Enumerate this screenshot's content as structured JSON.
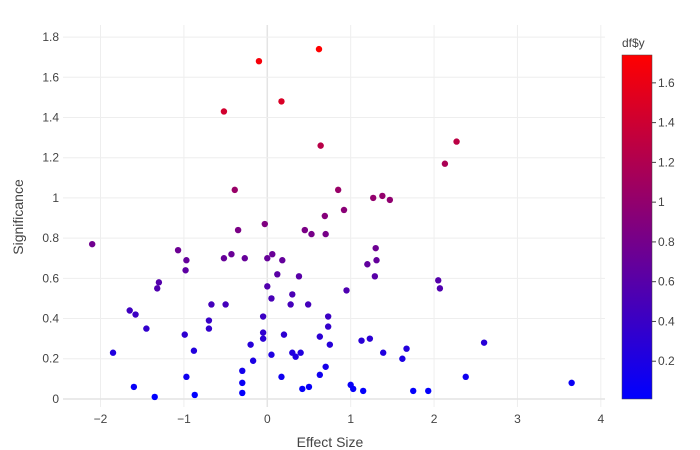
{
  "chart_data": {
    "type": "scatter",
    "title": "",
    "xlabel": "Effect Size",
    "ylabel": "Significance",
    "xlim": [
      -2.45,
      4.05
    ],
    "ylim": [
      -0.04,
      1.86
    ],
    "x_ticks": [
      -2,
      -1,
      0,
      1,
      2,
      3,
      4
    ],
    "x_tick_labels": [
      "−2",
      "−1",
      "0",
      "1",
      "2",
      "3",
      "4"
    ],
    "y_ticks": [
      0,
      0.2,
      0.4,
      0.6,
      0.8,
      1.0,
      1.2,
      1.4,
      1.6,
      1.8
    ],
    "y_tick_labels": [
      "0",
      "0.2",
      "0.4",
      "0.6",
      "0.8",
      "1",
      "1.2",
      "1.4",
      "1.6",
      "1.8"
    ],
    "grid": true,
    "colorbar": {
      "title": "df$y",
      "range": [
        0.01,
        1.74
      ],
      "ticks": [
        0.2,
        0.4,
        0.6,
        0.8,
        1.0,
        1.2,
        1.4,
        1.6
      ],
      "tick_labels": [
        "0.2",
        "0.4",
        "0.6",
        "0.8",
        "1",
        "1.2",
        "1.4",
        "1.6"
      ],
      "colors": [
        "#0000ff",
        "#ff0000"
      ]
    },
    "points": [
      {
        "x": -2.1,
        "y": 0.77
      },
      {
        "x": -1.85,
        "y": 0.23
      },
      {
        "x": -1.65,
        "y": 0.44
      },
      {
        "x": -1.58,
        "y": 0.42
      },
      {
        "x": -1.6,
        "y": 0.06
      },
      {
        "x": -1.45,
        "y": 0.35
      },
      {
        "x": -1.3,
        "y": 0.58
      },
      {
        "x": -1.32,
        "y": 0.55
      },
      {
        "x": -1.35,
        "y": 0.01
      },
      {
        "x": -1.07,
        "y": 0.74
      },
      {
        "x": -0.97,
        "y": 0.69
      },
      {
        "x": -0.98,
        "y": 0.64
      },
      {
        "x": -0.99,
        "y": 0.32
      },
      {
        "x": -0.97,
        "y": 0.11
      },
      {
        "x": -0.88,
        "y": 0.24
      },
      {
        "x": -0.87,
        "y": 0.02
      },
      {
        "x": -0.7,
        "y": 0.39
      },
      {
        "x": -0.7,
        "y": 0.35
      },
      {
        "x": -0.67,
        "y": 0.47
      },
      {
        "x": -0.52,
        "y": 1.43
      },
      {
        "x": -0.5,
        "y": 0.47
      },
      {
        "x": -0.52,
        "y": 0.7
      },
      {
        "x": -0.43,
        "y": 0.72
      },
      {
        "x": -0.39,
        "y": 1.04
      },
      {
        "x": -0.35,
        "y": 0.84
      },
      {
        "x": -0.27,
        "y": 0.7
      },
      {
        "x": -0.3,
        "y": 0.14
      },
      {
        "x": -0.3,
        "y": 0.08
      },
      {
        "x": -0.3,
        "y": 0.03
      },
      {
        "x": -0.2,
        "y": 0.27
      },
      {
        "x": -0.17,
        "y": 0.19
      },
      {
        "x": -0.1,
        "y": 1.68
      },
      {
        "x": -0.05,
        "y": 0.41
      },
      {
        "x": -0.05,
        "y": 0.33
      },
      {
        "x": -0.05,
        "y": 0.3
      },
      {
        "x": -0.03,
        "y": 0.87
      },
      {
        "x": 0.0,
        "y": 0.7
      },
      {
        "x": 0.0,
        "y": 0.56
      },
      {
        "x": 0.05,
        "y": 0.5
      },
      {
        "x": 0.06,
        "y": 0.72
      },
      {
        "x": 0.05,
        "y": 0.22
      },
      {
        "x": 0.12,
        "y": 0.62
      },
      {
        "x": 0.17,
        "y": 1.48
      },
      {
        "x": 0.18,
        "y": 0.69
      },
      {
        "x": 0.17,
        "y": 0.11
      },
      {
        "x": 0.2,
        "y": 0.32
      },
      {
        "x": 0.28,
        "y": 0.47
      },
      {
        "x": 0.3,
        "y": 0.52
      },
      {
        "x": 0.3,
        "y": 0.23
      },
      {
        "x": 0.34,
        "y": 0.21
      },
      {
        "x": 0.38,
        "y": 0.61
      },
      {
        "x": 0.4,
        "y": 0.23
      },
      {
        "x": 0.42,
        "y": 0.05
      },
      {
        "x": 0.45,
        "y": 0.84
      },
      {
        "x": 0.49,
        "y": 0.47
      },
      {
        "x": 0.5,
        "y": 0.06
      },
      {
        "x": 0.53,
        "y": 0.82
      },
      {
        "x": 0.62,
        "y": 1.74
      },
      {
        "x": 0.64,
        "y": 1.26
      },
      {
        "x": 0.63,
        "y": 0.31
      },
      {
        "x": 0.63,
        "y": 0.12
      },
      {
        "x": 0.69,
        "y": 0.91
      },
      {
        "x": 0.7,
        "y": 0.82
      },
      {
        "x": 0.7,
        "y": 0.16
      },
      {
        "x": 0.73,
        "y": 0.41
      },
      {
        "x": 0.73,
        "y": 0.36
      },
      {
        "x": 0.75,
        "y": 0.27
      },
      {
        "x": 0.85,
        "y": 1.04
      },
      {
        "x": 0.92,
        "y": 0.94
      },
      {
        "x": 0.95,
        "y": 0.54
      },
      {
        "x": 1.0,
        "y": 0.07
      },
      {
        "x": 1.03,
        "y": 0.05
      },
      {
        "x": 1.13,
        "y": 0.29
      },
      {
        "x": 1.15,
        "y": 0.04
      },
      {
        "x": 1.2,
        "y": 0.67
      },
      {
        "x": 1.23,
        "y": 0.3
      },
      {
        "x": 1.27,
        "y": 1.0
      },
      {
        "x": 1.29,
        "y": 0.61
      },
      {
        "x": 1.3,
        "y": 0.75
      },
      {
        "x": 1.31,
        "y": 0.69
      },
      {
        "x": 1.38,
        "y": 1.01
      },
      {
        "x": 1.39,
        "y": 0.23
      },
      {
        "x": 1.47,
        "y": 0.99
      },
      {
        "x": 1.62,
        "y": 0.2
      },
      {
        "x": 1.67,
        "y": 0.25
      },
      {
        "x": 1.75,
        "y": 0.04
      },
      {
        "x": 1.93,
        "y": 0.04
      },
      {
        "x": 2.05,
        "y": 0.59
      },
      {
        "x": 2.07,
        "y": 0.55
      },
      {
        "x": 2.13,
        "y": 1.17
      },
      {
        "x": 2.27,
        "y": 1.28
      },
      {
        "x": 2.38,
        "y": 0.11
      },
      {
        "x": 2.6,
        "y": 0.28
      },
      {
        "x": 3.65,
        "y": 0.08
      }
    ]
  }
}
